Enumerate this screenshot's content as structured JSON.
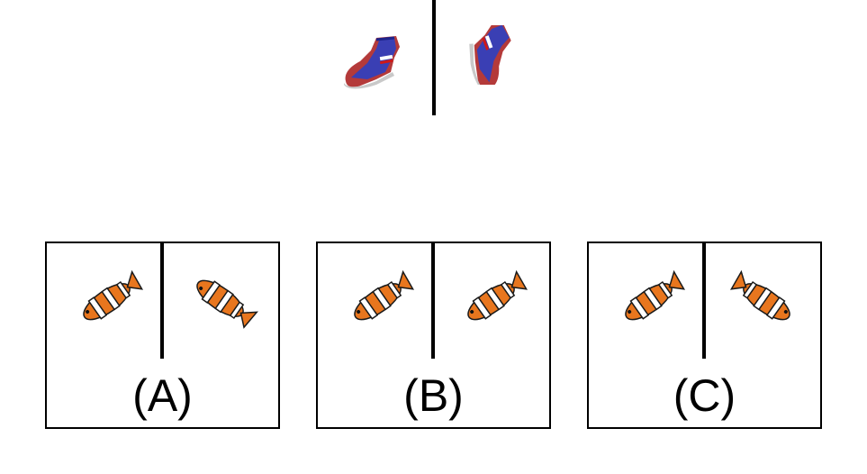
{
  "question": {
    "reference": {
      "left_icon": "sneaker-icon",
      "right_icon": "sneaker-rotated-icon"
    }
  },
  "options": [
    {
      "label": "(A)",
      "left_icon": "clownfish-icon",
      "right_icon": "clownfish-mirrored-icon"
    },
    {
      "label": "(B)",
      "left_icon": "clownfish-icon",
      "right_icon": "clownfish-icon"
    },
    {
      "label": "(C)",
      "left_icon": "clownfish-icon",
      "right_icon": "clownfish-rotated-icon"
    }
  ]
}
